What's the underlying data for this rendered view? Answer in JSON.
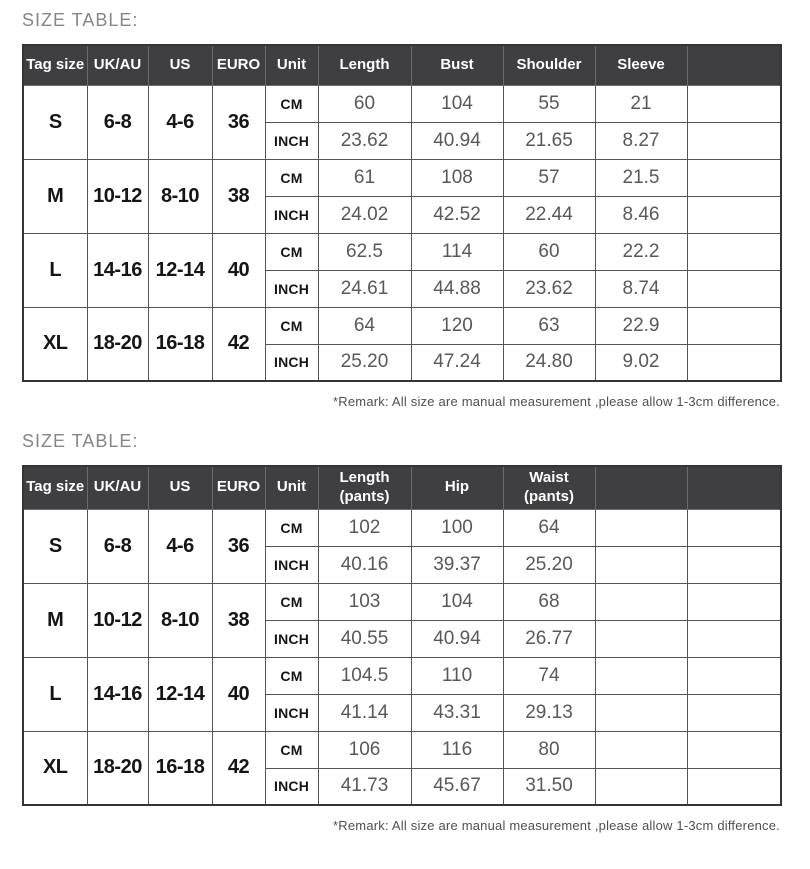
{
  "colors": {
    "header_bg": "#3f3f41",
    "header_text": "#ffffff",
    "grid_line": "#555557",
    "outer_line": "#353537",
    "title_color": "#868686",
    "value_color": "#58585a",
    "strong_color": "#151515",
    "remark_color": "#4f4f4f",
    "page_bg": "#ffffff"
  },
  "tables": [
    {
      "title": "SIZE TABLE:",
      "headers": [
        "Tag size",
        "UK/AU",
        "US",
        "EURO",
        "Unit",
        "Length",
        "Bust",
        "Shoulder",
        "Sleeve",
        ""
      ],
      "unit_labels": [
        "CM",
        "INCH"
      ],
      "rows": [
        {
          "tag": "S",
          "uk_au": "6-8",
          "us": "4-6",
          "euro": "36",
          "cm": [
            "60",
            "104",
            "55",
            "21"
          ],
          "inch": [
            "23.62",
            "40.94",
            "21.65",
            "8.27"
          ]
        },
        {
          "tag": "M",
          "uk_au": "10-12",
          "us": "8-10",
          "euro": "38",
          "cm": [
            "61",
            "108",
            "57",
            "21.5"
          ],
          "inch": [
            "24.02",
            "42.52",
            "22.44",
            "8.46"
          ]
        },
        {
          "tag": "L",
          "uk_au": "14-16",
          "us": "12-14",
          "euro": "40",
          "cm": [
            "62.5",
            "114",
            "60",
            "22.2"
          ],
          "inch": [
            "24.61",
            "44.88",
            "23.62",
            "8.74"
          ]
        },
        {
          "tag": "XL",
          "uk_au": "18-20",
          "us": "16-18",
          "euro": "42",
          "cm": [
            "64",
            "120",
            "63",
            "22.9"
          ],
          "inch": [
            "25.20",
            "47.24",
            "24.80",
            "9.02"
          ]
        }
      ],
      "remark": "*Remark: All size are manual measurement ,please allow 1-3cm difference."
    },
    {
      "title": "SIZE TABLE:",
      "headers": [
        "Tag size",
        "UK/AU",
        "US",
        "EURO",
        "Unit",
        "Length\n(pants)",
        "Hip",
        "Waist\n(pants)",
        "",
        ""
      ],
      "unit_labels": [
        "CM",
        "INCH"
      ],
      "rows": [
        {
          "tag": "S",
          "uk_au": "6-8",
          "us": "4-6",
          "euro": "36",
          "cm": [
            "102",
            "100",
            "64"
          ],
          "inch": [
            "40.16",
            "39.37",
            "25.20"
          ]
        },
        {
          "tag": "M",
          "uk_au": "10-12",
          "us": "8-10",
          "euro": "38",
          "cm": [
            "103",
            "104",
            "68"
          ],
          "inch": [
            "40.55",
            "40.94",
            "26.77"
          ]
        },
        {
          "tag": "L",
          "uk_au": "14-16",
          "us": "12-14",
          "euro": "40",
          "cm": [
            "104.5",
            "110",
            "74"
          ],
          "inch": [
            "41.14",
            "43.31",
            "29.13"
          ]
        },
        {
          "tag": "XL",
          "uk_au": "18-20",
          "us": "16-18",
          "euro": "42",
          "cm": [
            "106",
            "116",
            "80"
          ],
          "inch": [
            "41.73",
            "45.67",
            "31.50"
          ]
        }
      ],
      "remark": "*Remark: All size are manual measurement ,please allow 1-3cm difference."
    }
  ]
}
